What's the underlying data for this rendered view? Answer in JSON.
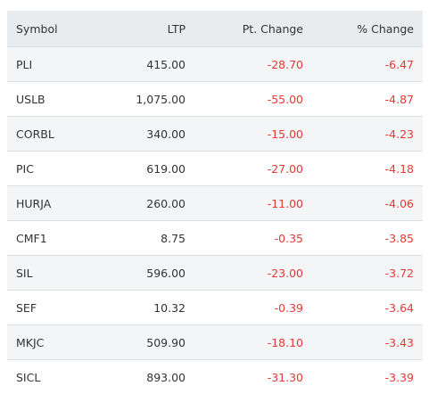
{
  "table": {
    "header": [
      "Symbol",
      "LTP",
      "Pt. Change",
      "% Change"
    ],
    "rows": [
      [
        "PLI",
        "415.00",
        "-28.70",
        "-6.47"
      ],
      [
        "USLB",
        "1,075.00",
        "-55.00",
        "-4.87"
      ],
      [
        "CORBL",
        "340.00",
        "-15.00",
        "-4.23"
      ],
      [
        "PIC",
        "619.00",
        "-27.00",
        "-4.18"
      ],
      [
        "HURJA",
        "260.00",
        "-11.00",
        "-4.06"
      ],
      [
        "CMF1",
        "8.75",
        "-0.35",
        "-3.85"
      ],
      [
        "SIL",
        "596.00",
        "-23.00",
        "-3.72"
      ],
      [
        "SEF",
        "10.32",
        "-0.39",
        "-3.64"
      ],
      [
        "MKJC",
        "509.90",
        "-18.10",
        "-3.43"
      ],
      [
        "SICL",
        "893.00",
        "-31.30",
        "-3.39"
      ]
    ]
  }
}
